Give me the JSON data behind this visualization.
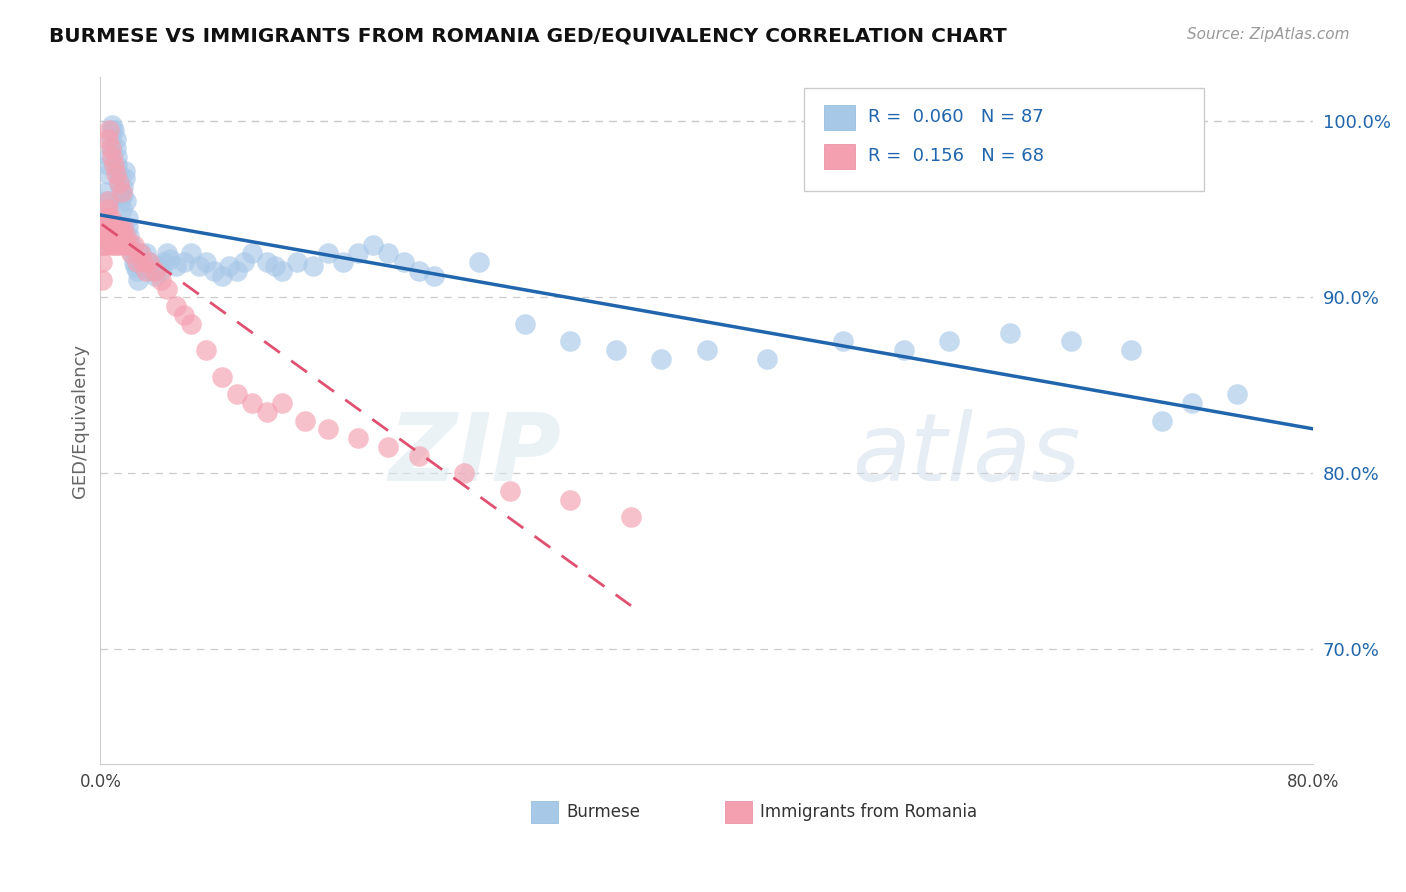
{
  "title": "BURMESE VS IMMIGRANTS FROM ROMANIA GED/EQUIVALENCY CORRELATION CHART",
  "source": "Source: ZipAtlas.com",
  "ylabel": "GED/Equivalency",
  "legend_R1_val": "0.060",
  "legend_N1_val": "87",
  "legend_R2_val": "0.156",
  "legend_N2_val": "68",
  "legend_label1": "Burmese",
  "legend_label2": "Immigrants from Romania",
  "color_blue": "#a8c8e8",
  "color_pink": "#f4a0b0",
  "color_trendline_blue": "#2166ac",
  "color_trendline_pink": "#e05070",
  "watermark_zip": "ZIP",
  "watermark_atlas": "atlas",
  "xmin": 0.0,
  "xmax": 0.8,
  "ymin": 0.635,
  "ymax": 1.025,
  "blue_x": [
    0.001,
    0.002,
    0.003,
    0.004,
    0.005,
    0.005,
    0.006,
    0.007,
    0.007,
    0.008,
    0.008,
    0.009,
    0.01,
    0.01,
    0.011,
    0.011,
    0.012,
    0.012,
    0.013,
    0.013,
    0.014,
    0.015,
    0.015,
    0.016,
    0.016,
    0.017,
    0.018,
    0.018,
    0.019,
    0.02,
    0.021,
    0.022,
    0.023,
    0.024,
    0.025,
    0.026,
    0.027,
    0.028,
    0.03,
    0.032,
    0.034,
    0.036,
    0.038,
    0.04,
    0.042,
    0.044,
    0.046,
    0.05,
    0.055,
    0.06,
    0.065,
    0.07,
    0.075,
    0.08,
    0.085,
    0.09,
    0.095,
    0.1,
    0.11,
    0.115,
    0.12,
    0.13,
    0.14,
    0.15,
    0.16,
    0.17,
    0.18,
    0.19,
    0.2,
    0.21,
    0.22,
    0.25,
    0.28,
    0.31,
    0.34,
    0.37,
    0.4,
    0.44,
    0.49,
    0.53,
    0.56,
    0.6,
    0.64,
    0.68,
    0.7,
    0.72,
    0.75
  ],
  "blue_y": [
    0.93,
    0.945,
    0.955,
    0.96,
    0.97,
    0.975,
    0.98,
    0.985,
    0.99,
    0.995,
    0.998,
    0.995,
    0.99,
    0.985,
    0.98,
    0.975,
    0.97,
    0.965,
    0.96,
    0.955,
    0.95,
    0.958,
    0.963,
    0.968,
    0.972,
    0.955,
    0.945,
    0.94,
    0.935,
    0.93,
    0.925,
    0.92,
    0.918,
    0.915,
    0.91,
    0.92,
    0.925,
    0.918,
    0.925,
    0.92,
    0.915,
    0.912,
    0.918,
    0.915,
    0.92,
    0.925,
    0.922,
    0.918,
    0.92,
    0.925,
    0.918,
    0.92,
    0.915,
    0.912,
    0.918,
    0.915,
    0.92,
    0.925,
    0.92,
    0.918,
    0.915,
    0.92,
    0.918,
    0.925,
    0.92,
    0.925,
    0.93,
    0.925,
    0.92,
    0.915,
    0.912,
    0.92,
    0.885,
    0.875,
    0.87,
    0.865,
    0.87,
    0.865,
    0.875,
    0.87,
    0.875,
    0.88,
    0.875,
    0.87,
    0.83,
    0.84,
    0.845
  ],
  "pink_x": [
    0.001,
    0.001,
    0.002,
    0.002,
    0.003,
    0.003,
    0.004,
    0.004,
    0.004,
    0.005,
    0.005,
    0.005,
    0.006,
    0.006,
    0.007,
    0.007,
    0.008,
    0.008,
    0.009,
    0.01,
    0.01,
    0.011,
    0.012,
    0.012,
    0.013,
    0.013,
    0.014,
    0.015,
    0.015,
    0.016,
    0.017,
    0.018,
    0.02,
    0.022,
    0.024,
    0.026,
    0.028,
    0.03,
    0.032,
    0.036,
    0.04,
    0.044,
    0.05,
    0.055,
    0.06,
    0.07,
    0.08,
    0.09,
    0.1,
    0.11,
    0.12,
    0.135,
    0.15,
    0.17,
    0.19,
    0.21,
    0.24,
    0.27,
    0.31,
    0.35,
    0.005,
    0.006,
    0.007,
    0.008,
    0.009,
    0.01,
    0.012,
    0.014
  ],
  "pink_y": [
    0.92,
    0.91,
    0.93,
    0.935,
    0.94,
    0.945,
    0.94,
    0.935,
    0.93,
    0.945,
    0.95,
    0.955,
    0.94,
    0.935,
    0.93,
    0.945,
    0.94,
    0.935,
    0.93,
    0.94,
    0.935,
    0.93,
    0.94,
    0.935,
    0.93,
    0.94,
    0.935,
    0.94,
    0.935,
    0.93,
    0.935,
    0.93,
    0.925,
    0.93,
    0.92,
    0.925,
    0.92,
    0.915,
    0.92,
    0.915,
    0.91,
    0.905,
    0.895,
    0.89,
    0.885,
    0.87,
    0.855,
    0.845,
    0.84,
    0.835,
    0.84,
    0.83,
    0.825,
    0.82,
    0.815,
    0.81,
    0.8,
    0.79,
    0.785,
    0.775,
    0.99,
    0.995,
    0.985,
    0.98,
    0.975,
    0.97,
    0.965,
    0.96
  ]
}
